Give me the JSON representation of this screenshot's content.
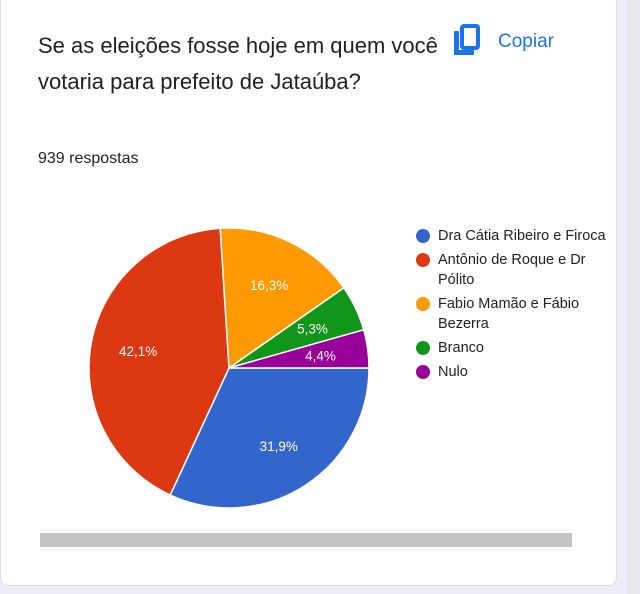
{
  "header": {
    "question": "Se as eleições fosse hoje em quem você votaria para prefeito de Jataúba?",
    "responses": "939 respostas",
    "copy_label": "Copiar"
  },
  "icons": {
    "copy": "copy-icon"
  },
  "colors": {
    "accent": "#1a73e8"
  },
  "chart_data": {
    "type": "pie",
    "categories": [
      "Dra Cátia Ribeiro e Firoca",
      "Antônio de Roque e Dr Pólito",
      "Fabio Mamão e Fábio Bezerra",
      "Branco",
      "Nulo"
    ],
    "values": [
      31.9,
      42.1,
      16.3,
      5.3,
      4.4
    ],
    "labels": [
      "31,9%",
      "42,1%",
      "16,3%",
      "5,3%",
      "4,4%"
    ],
    "colors": [
      "#3366cc",
      "#dc3912",
      "#ff9900",
      "#109618",
      "#990099"
    ],
    "legend_position": "right"
  }
}
